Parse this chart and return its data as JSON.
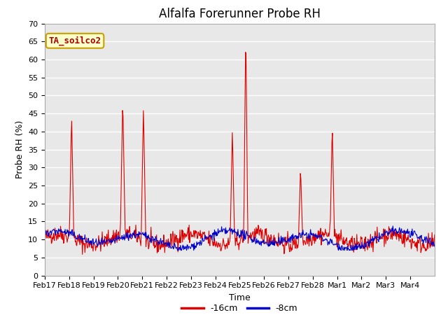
{
  "title": "Alfalfa Forerunner Probe RH",
  "ylabel": "Probe RH (%)",
  "xlabel": "Time",
  "ylim": [
    0,
    70
  ],
  "yticks": [
    0,
    5,
    10,
    15,
    20,
    25,
    30,
    35,
    40,
    45,
    50,
    55,
    60,
    65,
    70
  ],
  "annotation_text": "TA_soilco2",
  "annotation_bg": "#ffffcc",
  "annotation_border": "#c8a000",
  "annotation_text_color": "#aa0000",
  "line1_color": "#dd0000",
  "line2_color": "#0000cc",
  "line1_label": "-16cm",
  "line2_label": "-8cm",
  "plot_bg_color": "#e8e8e8",
  "fig_bg_color": "#ffffff",
  "grid_color": "#ffffff",
  "title_fontsize": 12,
  "axis_fontsize": 9,
  "tick_fontsize": 8,
  "xtick_labels": [
    "Feb 17",
    "Feb 18",
    "Feb 19",
    "Feb 20",
    "Feb 21",
    "Feb 22",
    "Feb 23",
    "Feb 24",
    "Feb 25",
    "Feb 26",
    "Feb 27",
    "Feb 28",
    "Mar 1",
    "Mar 2",
    "Mar 3",
    "Mar 4"
  ]
}
